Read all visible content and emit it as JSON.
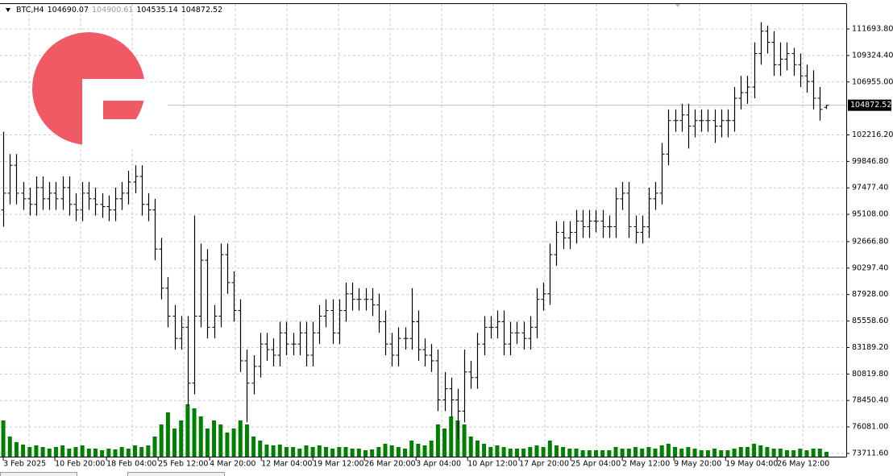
{
  "chart_data": {
    "type": "ohlc",
    "title": "BTC,H4",
    "xlim": [
      -0.5,
      128
    ],
    "ylim": [
      73420,
      113930
    ],
    "grid": true,
    "bar_color": "#000000",
    "volume_color": "#008000",
    "xticks": [
      {
        "value": 0,
        "label": "3 Feb 2025"
      },
      {
        "value": 7.83,
        "label": "10 Feb 20:00"
      },
      {
        "value": 15.67,
        "label": "18 Feb 04:00"
      },
      {
        "value": 23.5,
        "label": "25 Feb 12:00"
      },
      {
        "value": 31.33,
        "label": "4 Mar 20:00"
      },
      {
        "value": 39.17,
        "label": "12 Mar 04:00"
      },
      {
        "value": 47,
        "label": "19 Mar 12:00"
      },
      {
        "value": 54.83,
        "label": "26 Mar 20:00"
      },
      {
        "value": 62.67,
        "label": "3 Apr 04:00"
      },
      {
        "value": 70.5,
        "label": "10 Apr 12:00"
      },
      {
        "value": 78.33,
        "label": "17 Apr 20:00"
      },
      {
        "value": 86.17,
        "label": "25 Apr 04:00"
      },
      {
        "value": 94,
        "label": "2 May 12:00"
      },
      {
        "value": 101.83,
        "label": "9 May 20:00"
      },
      {
        "value": 109.67,
        "label": "19 May 04:00"
      },
      {
        "value": 117.5,
        "label": "26 May 12:00"
      }
    ],
    "yticks": [
      {
        "value": 73711.6,
        "label": "73711.60"
      },
      {
        "value": 76081,
        "label": "76081.00"
      },
      {
        "value": 78450.4,
        "label": "78450.40"
      },
      {
        "value": 80819.8,
        "label": "80819.80"
      },
      {
        "value": 83189.2,
        "label": "83189.20"
      },
      {
        "value": 85558.6,
        "label": "85558.60"
      },
      {
        "value": 87928,
        "label": "87928.00"
      },
      {
        "value": 90297.4,
        "label": "90297.40"
      },
      {
        "value": 92666.8,
        "label": "92666.80"
      },
      {
        "value": 95108,
        "label": "95108.00"
      },
      {
        "value": 97477.4,
        "label": "97477.40"
      },
      {
        "value": 99846.8,
        "label": "99846.80"
      },
      {
        "value": 102216.2,
        "label": "102216.20"
      },
      {
        "value": 106955,
        "label": "106955.00"
      },
      {
        "value": 109324.4,
        "label": "109324.40"
      },
      {
        "value": 111693.8,
        "label": "111693.80"
      }
    ],
    "open": [
      95500,
      97000,
      99500,
      97000,
      96500,
      96000,
      97500,
      96500,
      97000,
      96500,
      97500,
      96000,
      95500,
      97000,
      96500,
      96000,
      95800,
      95500,
      96500,
      97000,
      98000,
      98500,
      96000,
      95500,
      92000,
      88500,
      86000,
      84000,
      85000,
      80000,
      86000,
      91000,
      85000,
      86000,
      91500,
      89000,
      86500,
      82000,
      80000,
      81500,
      83500,
      83000,
      82500,
      84500,
      83500,
      83500,
      84500,
      82500,
      84500,
      86000,
      86500,
      84500,
      86500,
      88000,
      87500,
      87500,
      87500,
      87000,
      85500,
      83500,
      82500,
      84000,
      84000,
      85500,
      83000,
      82500,
      82000,
      78500,
      79500,
      78500,
      77500,
      81000,
      80500,
      83500,
      85000,
      85000,
      85500,
      83500,
      84500,
      84500,
      84000,
      85000,
      87500,
      88000,
      91500,
      93500,
      93000,
      93500,
      94500,
      94000,
      94500,
      94500,
      94000,
      94000,
      96500,
      97000,
      94000,
      93500,
      94000,
      96500,
      97000,
      100500,
      103500,
      103500,
      104000,
      103000,
      103500,
      103500,
      103500,
      103000,
      103500,
      103500,
      105500,
      106000,
      106500,
      109500,
      111500,
      110500,
      108500,
      109000,
      109500,
      108500,
      107500,
      107000,
      105500,
      104690.07
    ],
    "high": [
      102500,
      100500,
      100500,
      98000,
      97500,
      98500,
      98500,
      98000,
      98000,
      98500,
      98500,
      97000,
      98000,
      98000,
      97500,
      97000,
      96800,
      97500,
      98000,
      99000,
      99500,
      99500,
      97000,
      96500,
      93000,
      89500,
      87000,
      86000,
      86000,
      95000,
      92500,
      92000,
      87000,
      92500,
      92500,
      90000,
      87500,
      83000,
      82500,
      84500,
      84500,
      84000,
      85500,
      85500,
      84500,
      85500,
      85500,
      85500,
      87000,
      87500,
      87500,
      87500,
      89000,
      89000,
      88500,
      88500,
      88500,
      88000,
      86500,
      84500,
      85000,
      85000,
      88500,
      86500,
      84000,
      83500,
      83000,
      81000,
      80500,
      79500,
      83000,
      82000,
      84500,
      86000,
      86000,
      86500,
      86500,
      85500,
      85500,
      85500,
      86000,
      88500,
      89000,
      92500,
      94500,
      94500,
      94500,
      95500,
      95500,
      95500,
      95500,
      95500,
      95000,
      97500,
      98000,
      98000,
      95000,
      95000,
      97500,
      98000,
      101500,
      104500,
      104500,
      105000,
      105000,
      104500,
      104500,
      104500,
      104500,
      104500,
      104500,
      106500,
      107500,
      107500,
      110500,
      112300,
      112000,
      111500,
      110500,
      110500,
      110000,
      109500,
      108500,
      108000,
      106500,
      104900.61
    ],
    "low": [
      94000,
      96000,
      96000,
      95500,
      95000,
      95000,
      95500,
      95500,
      95500,
      95500,
      95000,
      94500,
      94500,
      95500,
      95000,
      94800,
      94500,
      94500,
      95500,
      96000,
      97000,
      95000,
      94500,
      91000,
      87500,
      85000,
      83000,
      83000,
      78000,
      79000,
      85000,
      84000,
      84000,
      85000,
      88000,
      85500,
      81000,
      76500,
      79000,
      80500,
      82000,
      81500,
      81500,
      82500,
      82500,
      82500,
      81500,
      81500,
      83500,
      85000,
      83500,
      83500,
      85500,
      86500,
      86500,
      86500,
      86000,
      84500,
      82500,
      81500,
      81500,
      83000,
      83000,
      82000,
      81500,
      81000,
      77500,
      77500,
      77000,
      75000,
      76500,
      79500,
      79500,
      82500,
      84000,
      84000,
      82500,
      82500,
      83500,
      83000,
      83000,
      84000,
      86500,
      87000,
      90500,
      92000,
      92000,
      92500,
      93000,
      93000,
      93500,
      93000,
      93000,
      93000,
      95500,
      93000,
      92500,
      92500,
      93000,
      95500,
      96000,
      99500,
      102500,
      102500,
      101000,
      102000,
      102500,
      102500,
      101500,
      102000,
      102000,
      102500,
      104500,
      105000,
      105500,
      108500,
      109500,
      107500,
      107500,
      108000,
      107500,
      106500,
      106000,
      104500,
      103500,
      104535.14
    ],
    "close": [
      97000,
      99500,
      97000,
      96500,
      96000,
      97500,
      96500,
      97000,
      96500,
      97500,
      96000,
      95500,
      97000,
      96500,
      96000,
      95800,
      95500,
      96500,
      97000,
      98000,
      98500,
      96000,
      95500,
      92000,
      88500,
      86000,
      84000,
      85000,
      80000,
      86000,
      91000,
      85000,
      86000,
      91500,
      89000,
      86500,
      82000,
      80000,
      81500,
      83500,
      83000,
      82500,
      84500,
      83500,
      83500,
      84500,
      82500,
      84500,
      86000,
      86500,
      84500,
      86500,
      88000,
      87500,
      87500,
      87500,
      87000,
      85500,
      83500,
      82500,
      84000,
      84000,
      85500,
      83000,
      82500,
      82000,
      78500,
      79500,
      78500,
      77500,
      81000,
      80500,
      83500,
      85000,
      85000,
      85500,
      83500,
      84500,
      84500,
      84000,
      85000,
      87500,
      88000,
      91500,
      93500,
      93000,
      93500,
      94500,
      94000,
      94500,
      94500,
      94000,
      94000,
      96500,
      97000,
      94000,
      93500,
      94000,
      96500,
      97000,
      100500,
      103500,
      103500,
      104000,
      103000,
      103500,
      103500,
      103500,
      103000,
      103500,
      103500,
      105500,
      106000,
      106500,
      109500,
      111500,
      110500,
      108500,
      109000,
      109500,
      108500,
      107500,
      107000,
      105500,
      104500,
      104872.52
    ],
    "volume": [
      45,
      25,
      18,
      15,
      12,
      14,
      12,
      10,
      12,
      14,
      10,
      12,
      14,
      10,
      10,
      8,
      10,
      9,
      12,
      10,
      14,
      12,
      14,
      25,
      40,
      55,
      35,
      45,
      65,
      60,
      50,
      35,
      45,
      40,
      30,
      35,
      45,
      40,
      25,
      20,
      15,
      14,
      15,
      12,
      12,
      10,
      14,
      12,
      14,
      12,
      10,
      12,
      12,
      10,
      10,
      8,
      9,
      12,
      16,
      14,
      12,
      10,
      20,
      16,
      14,
      20,
      40,
      35,
      50,
      45,
      40,
      25,
      20,
      16,
      12,
      14,
      12,
      10,
      10,
      10,
      12,
      14,
      12,
      20,
      14,
      12,
      10,
      10,
      8,
      8,
      8,
      8,
      8,
      12,
      10,
      10,
      12,
      10,
      12,
      10,
      14,
      16,
      12,
      10,
      12,
      10,
      8,
      8,
      10,
      8,
      8,
      10,
      12,
      12,
      16,
      14,
      12,
      10,
      10,
      8,
      8,
      10,
      8,
      10,
      10,
      6
    ]
  }
}
